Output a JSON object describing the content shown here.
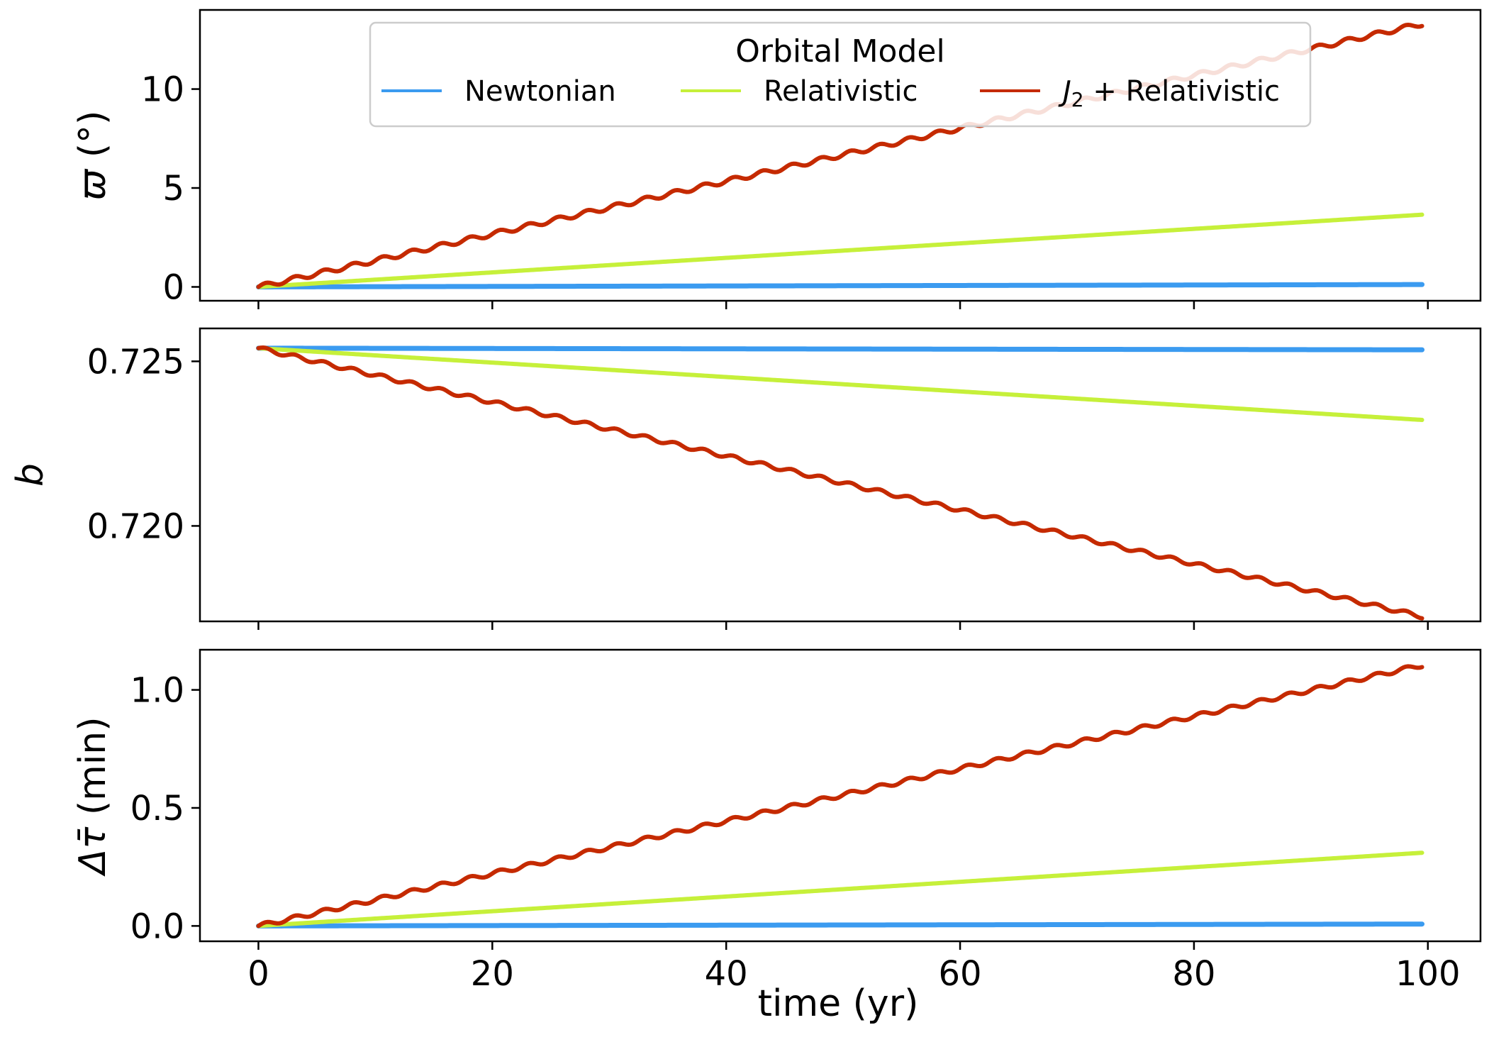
{
  "chart_data": {
    "type": "line",
    "xlabel": "time (yr)",
    "x_ticks": [
      "0",
      "20",
      "40",
      "60",
      "80",
      "100"
    ],
    "xlim": [
      -5,
      104.5
    ],
    "x_range": [
      0,
      99.5
    ],
    "legend": {
      "title": "Orbital Model",
      "placement": "top-center of first panel",
      "entries": [
        {
          "label": "Newtonian",
          "color": "#3b9bf0"
        },
        {
          "label": "Relativistic",
          "color": "#c6f03a"
        },
        {
          "label_italic": "J",
          "label_sub": "2",
          "label_rest": " + Relativistic",
          "color": "#c52a00"
        }
      ]
    },
    "panels": [
      {
        "ylabel": "ϖ (°)",
        "ylabel_symbol": "ϖ",
        "ylabel_unit": " (°)",
        "ylim": [
          -0.7,
          14.0
        ],
        "y_ticks": [
          {
            "value": 0,
            "label": "0"
          },
          {
            "value": 5,
            "label": "5"
          },
          {
            "value": 10,
            "label": "10"
          }
        ],
        "series": [
          {
            "name": "Newtonian",
            "start": 0,
            "end": 0.12,
            "wobble": 0
          },
          {
            "name": "Relativistic",
            "start": 0,
            "end": 3.65,
            "wobble": 0
          },
          {
            "name": "J2 + Relativistic",
            "start": 0,
            "end": 13.3,
            "wobble": 0.12
          }
        ]
      },
      {
        "ylabel": "b",
        "ylim": [
          0.7171,
          0.726
        ],
        "y_ticks": [
          {
            "value": 0.72,
            "label": "0.720"
          },
          {
            "value": 0.725,
            "label": "0.725"
          }
        ],
        "series": [
          {
            "name": "Newtonian",
            "start": 0.7254,
            "end": 0.72535,
            "wobble": 0
          },
          {
            "name": "Relativistic",
            "start": 0.7254,
            "end": 0.72322,
            "wobble": 0
          },
          {
            "name": "J2 + Relativistic",
            "start": 0.7254,
            "end": 0.71725,
            "wobble": 6e-05
          }
        ]
      },
      {
        "ylabel": "Δτ̄ (min)",
        "ylabel_symbol": "Δτ̄",
        "ylabel_unit": " (min)",
        "ylim": [
          -0.065,
          1.17
        ],
        "y_ticks": [
          {
            "value": 0.0,
            "label": "0.0"
          },
          {
            "value": 0.5,
            "label": "0.5"
          },
          {
            "value": 1.0,
            "label": "1.0"
          }
        ],
        "series": [
          {
            "name": "Newtonian",
            "start": 0,
            "end": 0.008,
            "wobble": 0
          },
          {
            "name": "Relativistic",
            "start": 0,
            "end": 0.31,
            "wobble": 0
          },
          {
            "name": "J2 + Relativistic",
            "start": 0,
            "end": 1.105,
            "wobble": 0.009
          }
        ]
      }
    ]
  }
}
